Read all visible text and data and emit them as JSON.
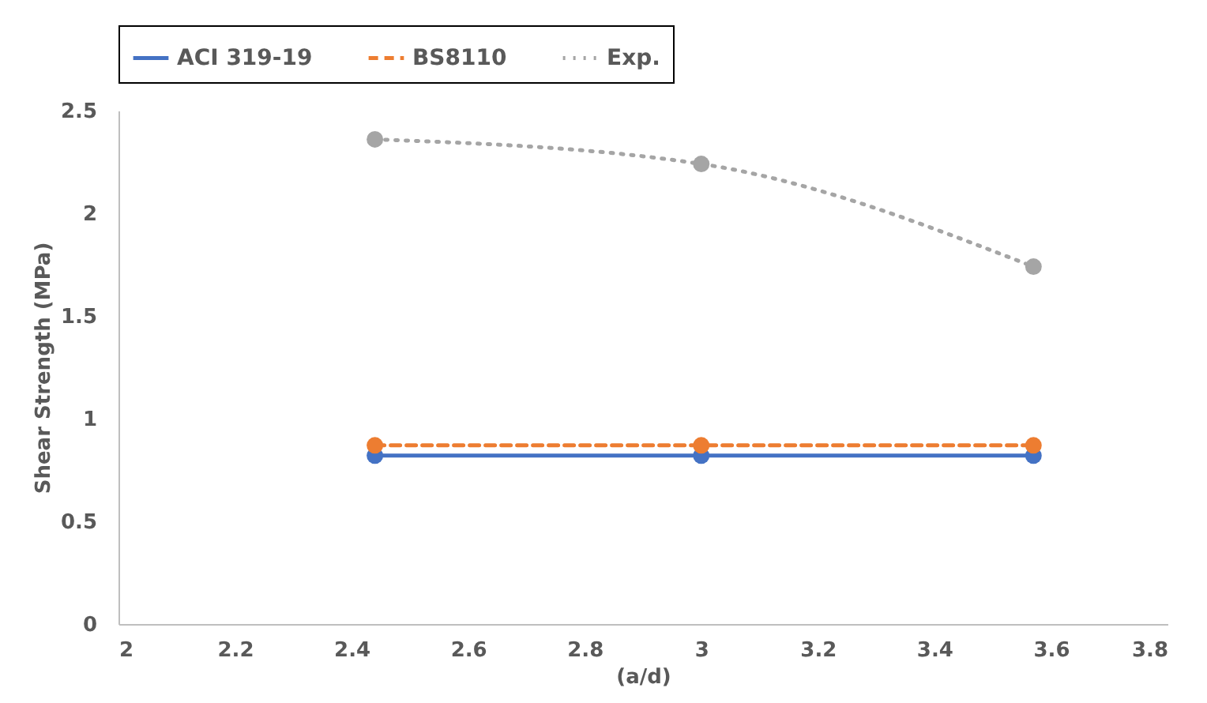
{
  "chart_data": {
    "type": "line",
    "xlabel": "(a/d)",
    "ylabel": "Shear Strength (MPa)",
    "x": [
      2.44,
      3.0,
      3.57
    ],
    "series": [
      {
        "name": "ACI 319-19",
        "color": "#4472c4",
        "line_style": "solid",
        "values": [
          0.82,
          0.82,
          0.82
        ]
      },
      {
        "name": "BS8110",
        "color": "#ed7d31",
        "line_style": "dashed",
        "values": [
          0.87,
          0.87,
          0.87
        ]
      },
      {
        "name": "Exp.",
        "color": "#a5a5a5",
        "line_style": "dotted",
        "values": [
          2.36,
          2.24,
          1.74
        ]
      }
    ],
    "xlim": [
      2,
      3.8
    ],
    "xticks": [
      2,
      2.2,
      2.4,
      2.6,
      2.8,
      3,
      3.2,
      3.4,
      3.6,
      3.8
    ],
    "ylim": [
      0,
      2.5
    ],
    "yticks": [
      0,
      0.5,
      1,
      1.5,
      2,
      2.5
    ],
    "grid": false,
    "legend": "top",
    "marker": "circle"
  }
}
